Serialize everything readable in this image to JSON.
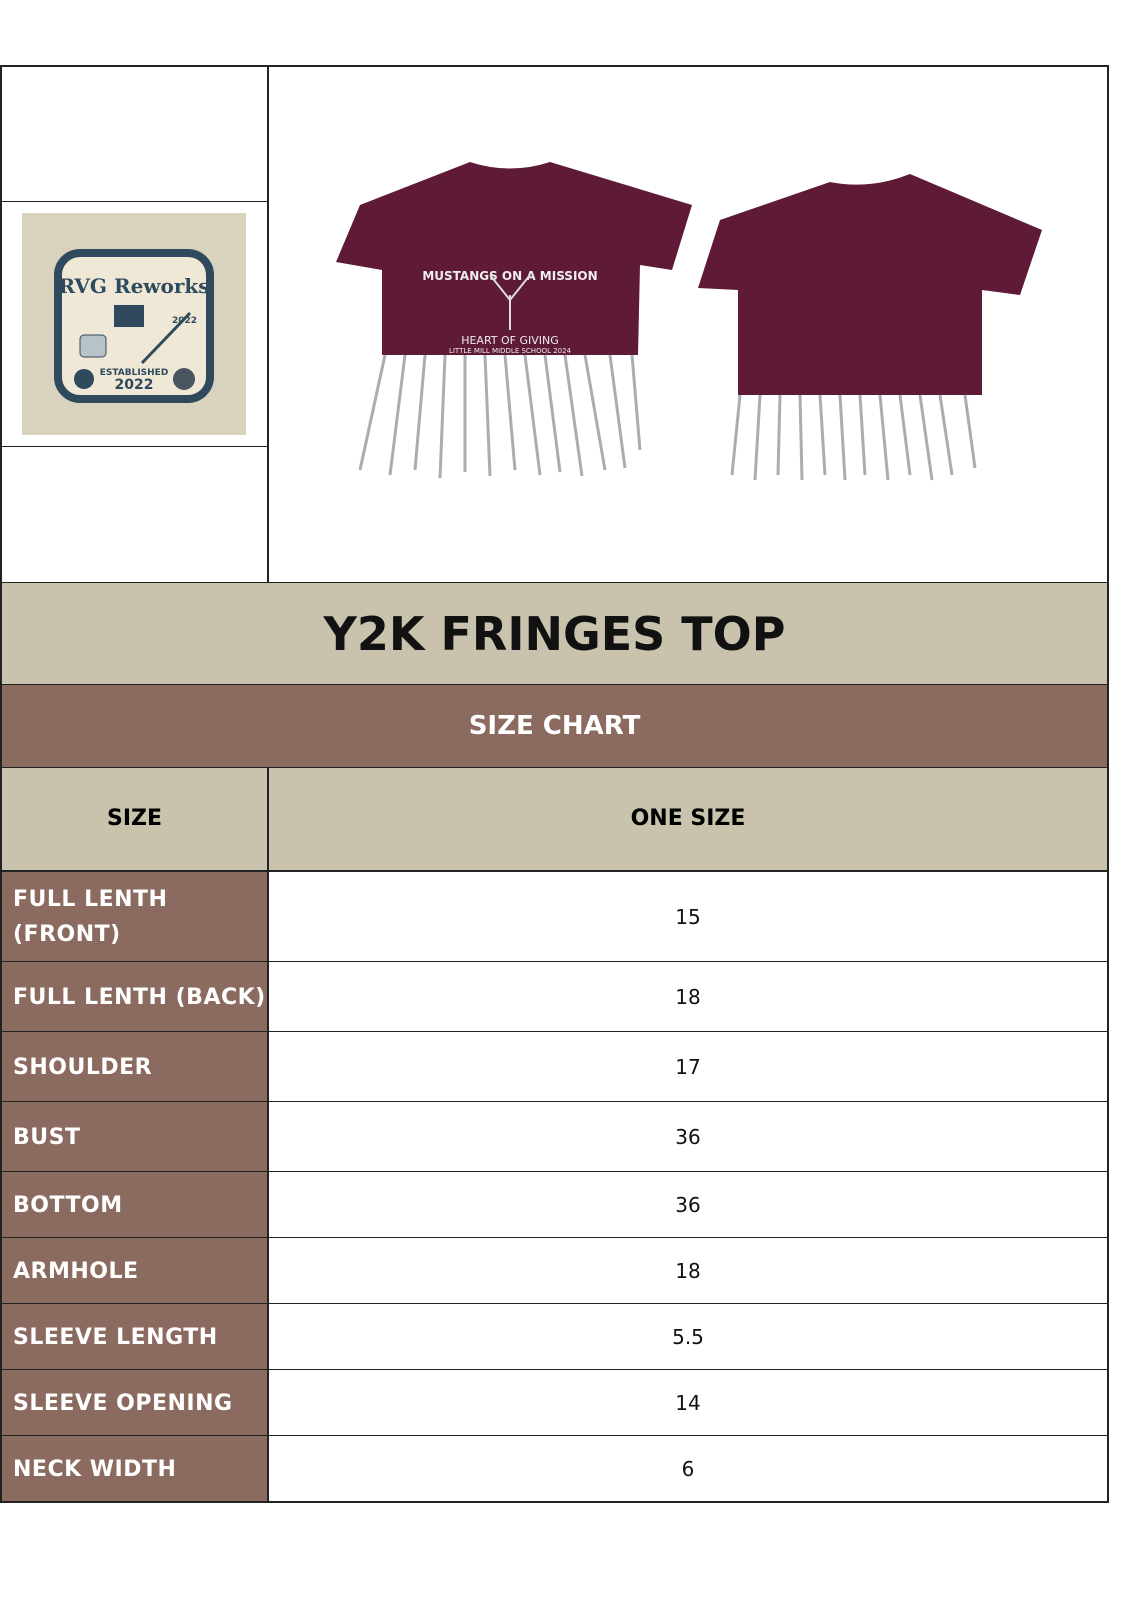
{
  "logo": {
    "brand": "RVG Reworks",
    "established": "ESTABLISHED",
    "year": "2022",
    "colors": {
      "badge": "#2f4a5c",
      "bg": "#d9d2bf"
    }
  },
  "product_image": {
    "print_top": "MUSTANGS ON A MISSION",
    "print_bottom": "HEART OF GIVING",
    "print_small": "LITTLE MILL MIDDLE SCHOOL 2024",
    "color": "#5e1a36"
  },
  "title": "Y2K FRINGES TOP",
  "subtitle": "SIZE CHART",
  "header": {
    "size": "SIZE",
    "one_size": "ONE SIZE"
  },
  "rows": [
    {
      "label": "FULL LENTH (FRONT)",
      "value": "15"
    },
    {
      "label": "FULL LENTH (BACK)",
      "value": "18"
    },
    {
      "label": "SHOULDER",
      "value": "17"
    },
    {
      "label": "BUST",
      "value": "36"
    },
    {
      "label": "BOTTOM",
      "value": "36"
    },
    {
      "label": "ARMHOLE",
      "value": "18"
    },
    {
      "label": "SLEEVE LENGTH",
      "value": "5.5"
    },
    {
      "label": "SLEEVE OPENING",
      "value": "14"
    },
    {
      "label": "NECK WIDTH",
      "value": "6"
    }
  ],
  "colors": {
    "label_bg": "#8b6a60",
    "beige": "#c9c3ad"
  }
}
